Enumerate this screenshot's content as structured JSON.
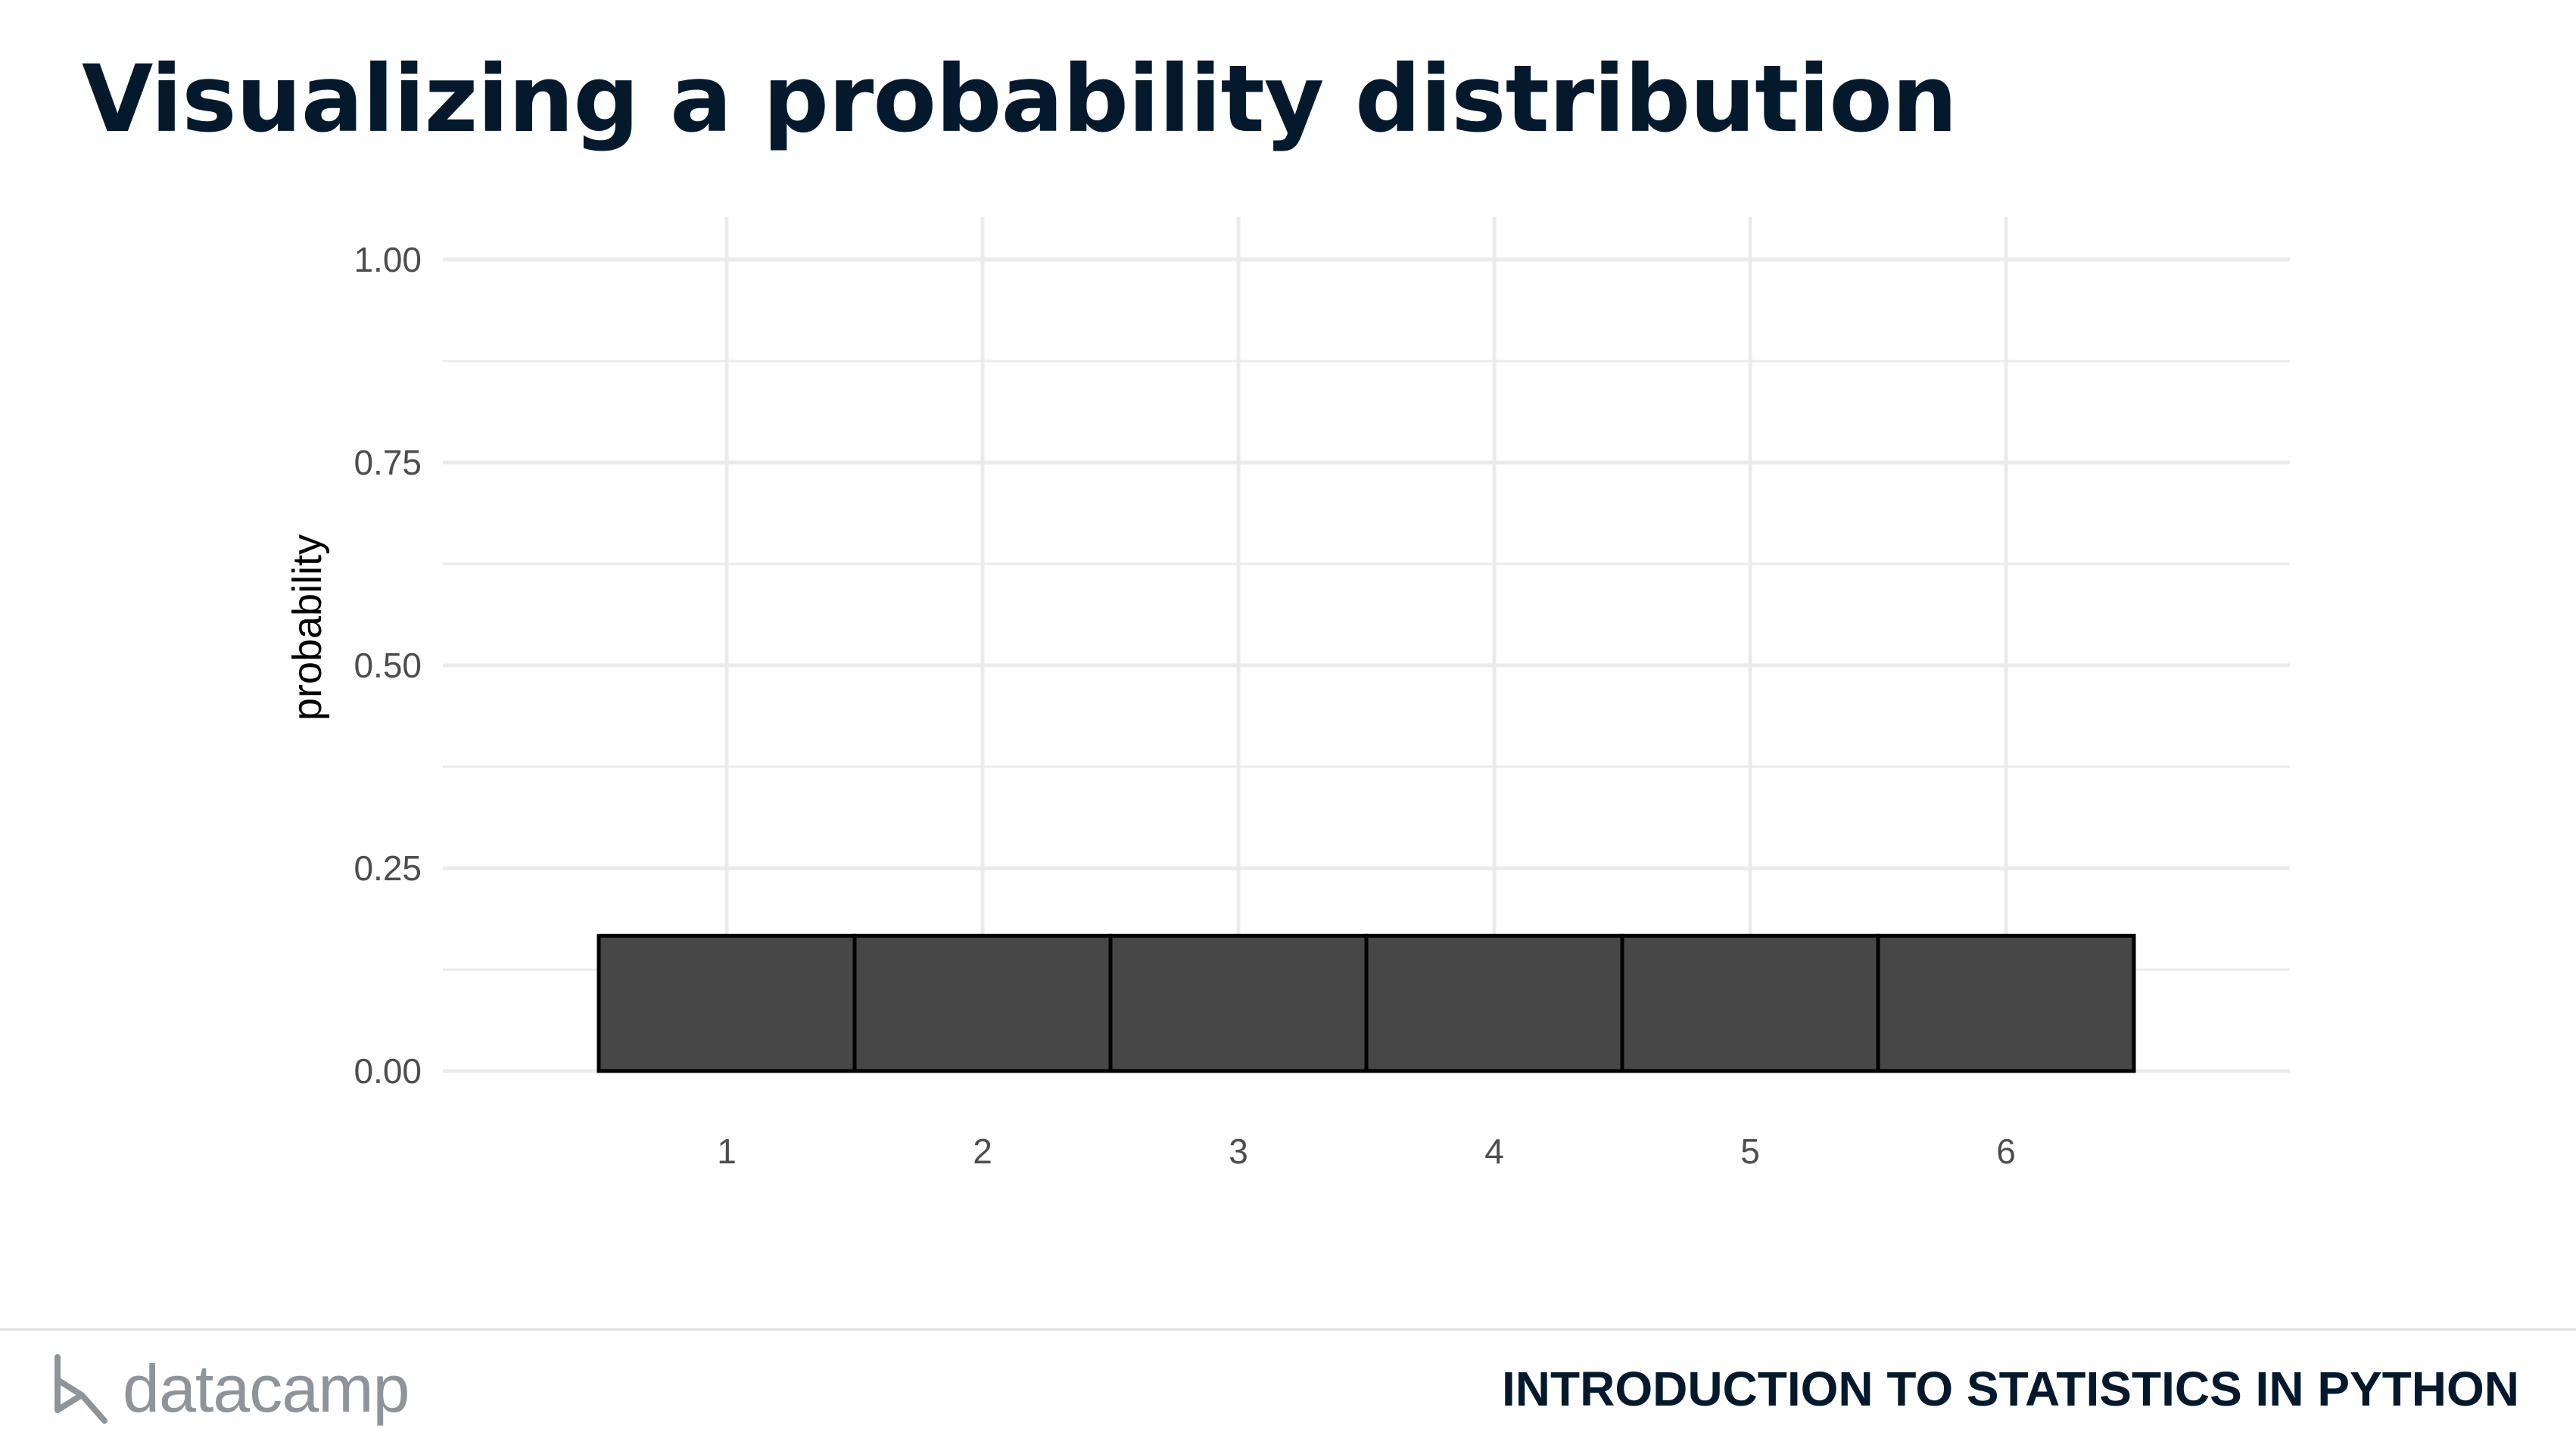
{
  "slide": {
    "title": "Visualizing a probability distribution"
  },
  "footer": {
    "brand": "datacamp",
    "course": "INTRODUCTION TO STATISTICS IN PYTHON"
  },
  "colors": {
    "title": "#05192d",
    "bar_fill": "#474747",
    "bar_stroke": "#000000",
    "grid": "#ebebeb",
    "brand_gray": "#8f949a"
  },
  "chart_data": {
    "type": "bar",
    "categories": [
      "1",
      "2",
      "3",
      "4",
      "5",
      "6"
    ],
    "values": [
      0.1667,
      0.1667,
      0.1667,
      0.1667,
      0.1667,
      0.1667
    ],
    "title": "",
    "xlabel": "",
    "ylabel": "probability",
    "ylim": [
      0,
      1
    ],
    "yticks": [
      "0.00",
      "0.25",
      "0.50",
      "0.75",
      "1.00"
    ],
    "grid": true,
    "legend": "none"
  }
}
